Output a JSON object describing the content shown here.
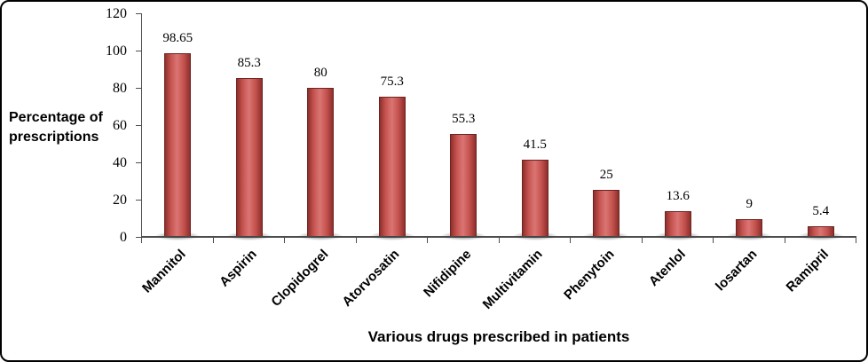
{
  "chart_data": {
    "type": "bar",
    "categories": [
      "Mannitol",
      "Aspirin",
      "Clopidogrel",
      "Atorvosatin",
      "Nifidipine",
      "Multivitamin",
      "Phenytoin",
      "Atenlol",
      "losartan",
      "Ramipril"
    ],
    "values": [
      98.65,
      85.3,
      80,
      75.3,
      55.3,
      41.5,
      25,
      13.6,
      9,
      5.4
    ],
    "value_labels": [
      "98.65",
      "85.3",
      "80",
      "75.3",
      "55.3",
      "41.5",
      "25",
      "13.6",
      "9",
      "5.4"
    ],
    "title": "",
    "xlabel": "Various drugs prescribed in patients",
    "ylabel": "Percentage of prescriptions",
    "ylim": [
      0,
      120
    ],
    "ytick_step": 20,
    "grid": "off",
    "legend": "none",
    "bar_color": "#c0504d",
    "bar_highlight_color": "#da7573",
    "bar_border_color": "#6d2422",
    "axis_color": "#4d4d4d",
    "frame_border_color": "#000000"
  },
  "y_axis_title_lines": [
    "Percentage of",
    "prescriptions"
  ]
}
